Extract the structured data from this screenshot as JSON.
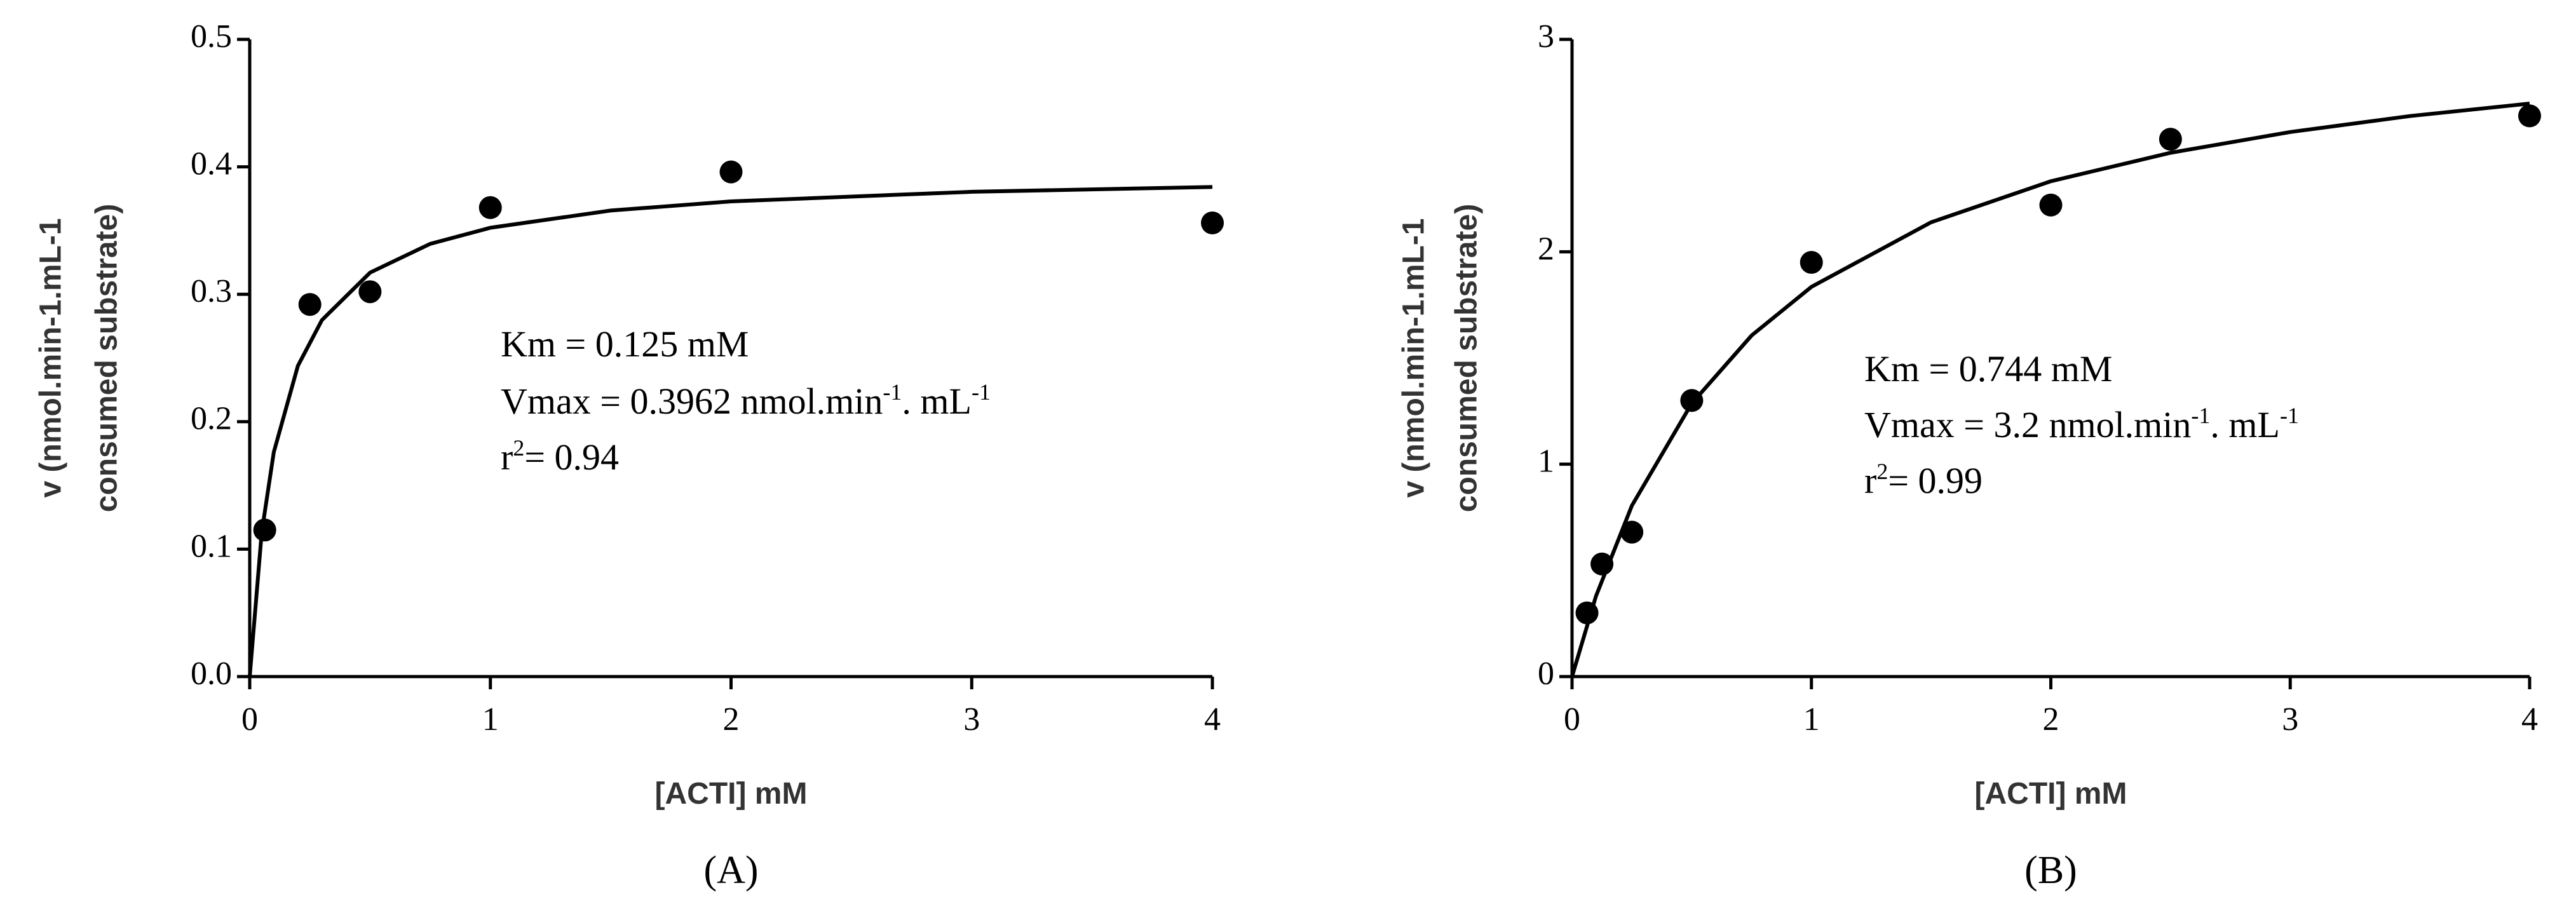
{
  "chart_data": [
    {
      "type": "scatter",
      "label": "(A)",
      "xlabel": "[ACTI] mM",
      "ylabel": [
        "v (nmol.min-1.mL-1",
        "consumed substrate)"
      ],
      "xlim": [
        0,
        4
      ],
      "ylim": [
        0,
        0.5
      ],
      "xticks": [
        0,
        1,
        2,
        3,
        4
      ],
      "yticks": [
        {
          "value": 0,
          "label": "0.0"
        },
        0.1,
        0.2,
        0.3,
        0.4,
        0.5
      ],
      "annotations": [
        [
          {
            "text": "Km = 0.125 mM"
          }
        ],
        [
          {
            "text": "Vmax = 0.3962 nmol.min"
          },
          {
            "text": "-1",
            "superscript": true
          },
          {
            "text": ". mL"
          },
          {
            "text": "-1",
            "superscript": true
          }
        ],
        [
          {
            "text": "r"
          },
          {
            "text": "2",
            "superscript": true
          },
          {
            "text": "= 0.94"
          }
        ]
      ],
      "series": [
        {
          "type": "scatter",
          "color": "#000000",
          "x": [
            0.0625,
            0.25,
            0.5,
            1,
            2,
            4
          ],
          "values": [
            0.115,
            0.292,
            0.302,
            0.368,
            0.396,
            0.356
          ]
        },
        {
          "type": "line",
          "color": "#000000",
          "x": [
            0,
            0.05,
            0.1,
            0.2,
            0.3,
            0.5,
            0.75,
            1,
            1.5,
            2,
            3,
            4
          ],
          "values": [
            0,
            0.1132,
            0.1761,
            0.2438,
            0.2797,
            0.317,
            0.3396,
            0.3522,
            0.3657,
            0.3729,
            0.3804,
            0.3842
          ]
        }
      ]
    },
    {
      "type": "scatter",
      "label": "(B)",
      "xlabel": "[ACTI] mM",
      "ylabel": [
        "v (nmol.min-1.mL-1",
        "consumed substrate)"
      ],
      "xlim": [
        0,
        4
      ],
      "ylim": [
        0,
        3
      ],
      "xticks": [
        0,
        1,
        2,
        3,
        4
      ],
      "yticks": [
        0,
        1,
        2,
        3
      ],
      "annotations": [
        [
          {
            "text": "Km = 0.744 mM"
          }
        ],
        [
          {
            "text": "Vmax = 3.2 nmol.min"
          },
          {
            "text": "-1",
            "superscript": true
          },
          {
            "text": ". mL"
          },
          {
            "text": "-1",
            "superscript": true
          }
        ],
        [
          {
            "text": "r"
          },
          {
            "text": "2",
            "superscript": true
          },
          {
            "text": "= 0.99"
          }
        ]
      ],
      "series": [
        {
          "type": "scatter",
          "color": "#000000",
          "x": [
            0.0625,
            0.125,
            0.25,
            0.5,
            1,
            2,
            2.5,
            4
          ],
          "values": [
            0.3,
            0.53,
            0.68,
            1.3,
            1.95,
            2.22,
            2.53,
            2.64
          ]
        },
        {
          "type": "line",
          "color": "#000000",
          "x": [
            0,
            0.1,
            0.25,
            0.5,
            0.75,
            1,
            1.5,
            2,
            2.5,
            3,
            3.5,
            4
          ],
          "values": [
            0,
            0.379,
            0.805,
            1.286,
            1.606,
            1.835,
            2.139,
            2.332,
            2.466,
            2.564,
            2.639,
            2.698
          ]
        }
      ]
    }
  ]
}
